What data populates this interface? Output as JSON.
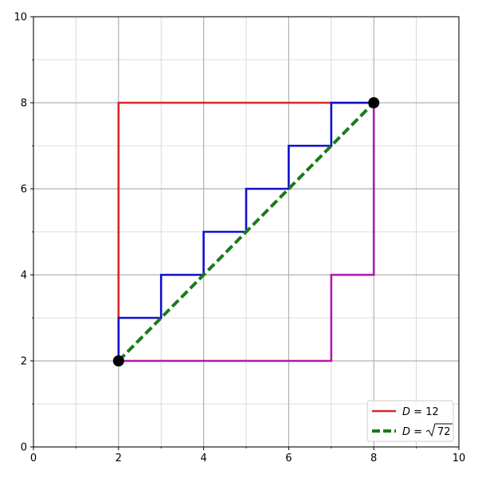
{
  "chart_data": {
    "type": "line",
    "title": "",
    "xlabel": "",
    "ylabel": "",
    "xlim": [
      0,
      10
    ],
    "ylim": [
      0,
      10
    ],
    "x_major_ticks": [
      0,
      2,
      4,
      6,
      8,
      10
    ],
    "y_major_ticks": [
      0,
      2,
      4,
      6,
      8,
      10
    ],
    "x_minor_ticks": [
      1,
      3,
      5,
      7,
      9
    ],
    "y_minor_ticks": [
      1,
      3,
      5,
      7,
      9
    ],
    "grid": true,
    "legend_position": "lower-right",
    "series": [
      {
        "name": "D = 12",
        "legend_symbol": "D",
        "legend_value": "12",
        "color": "#d62728",
        "style": "solid",
        "in_legend": true,
        "points": [
          [
            2,
            2
          ],
          [
            2,
            8
          ],
          [
            8,
            8
          ]
        ]
      },
      {
        "name": "",
        "color": "#b019b0",
        "style": "solid",
        "in_legend": false,
        "points": [
          [
            2,
            2
          ],
          [
            7,
            2
          ],
          [
            7,
            4
          ],
          [
            8,
            4
          ],
          [
            8,
            8
          ]
        ]
      },
      {
        "name": "",
        "color": "#1010cc",
        "style": "solid",
        "in_legend": false,
        "points": [
          [
            2,
            2
          ],
          [
            2,
            3
          ],
          [
            3,
            3
          ],
          [
            3,
            4
          ],
          [
            4,
            4
          ],
          [
            4,
            5
          ],
          [
            5,
            5
          ],
          [
            5,
            6
          ],
          [
            6,
            6
          ],
          [
            6,
            7
          ],
          [
            7,
            7
          ],
          [
            7,
            8
          ],
          [
            8,
            8
          ]
        ]
      },
      {
        "name": "D = √72",
        "legend_symbol": "D",
        "legend_value": "72",
        "color": "#1a7a1a",
        "style": "dashed",
        "in_legend": true,
        "points": [
          [
            2,
            2
          ],
          [
            8,
            8
          ]
        ]
      }
    ],
    "markers": [
      {
        "x": 2,
        "y": 2,
        "color": "#000000"
      },
      {
        "x": 8,
        "y": 8,
        "color": "#000000"
      }
    ]
  }
}
